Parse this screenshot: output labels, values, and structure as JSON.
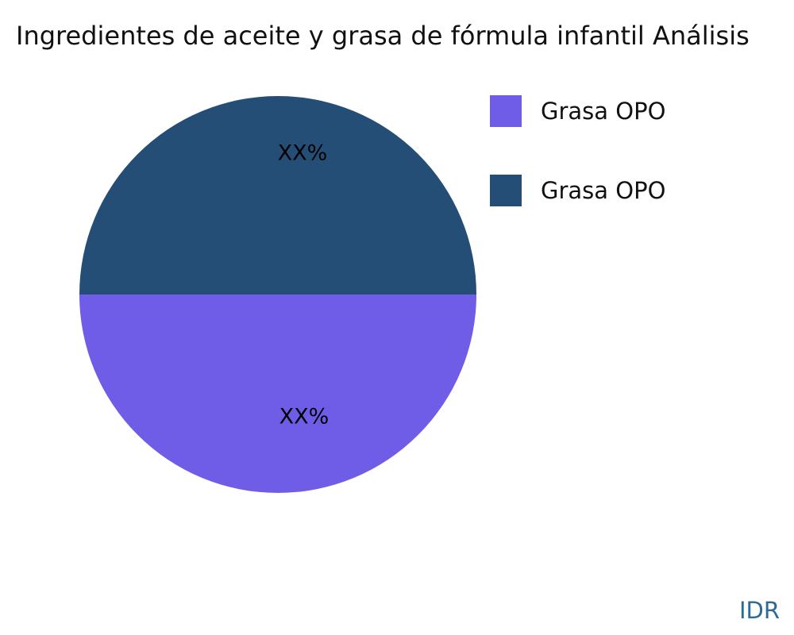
{
  "title": "Ingredientes de aceite y grasa de fórmula infantil Análisis",
  "watermark": "IDR",
  "legend": {
    "items": [
      {
        "label": "Grasa OPO",
        "color": "#6f5de8"
      },
      {
        "label": "Grasa OPO",
        "color": "#254e77"
      }
    ]
  },
  "chart_data": {
    "type": "pie",
    "title": "Ingredientes de aceite y grasa de fórmula infantil Análisis",
    "labels": [
      "Grasa OPO",
      "Grasa OPO"
    ],
    "values": [
      50,
      50
    ],
    "value_labels": [
      "XX%",
      "XX%"
    ],
    "colors": [
      "#6f5de8",
      "#254e77"
    ],
    "slice_positions": [
      "bottom",
      "top"
    ],
    "legend_position": "right",
    "start_angle_deg": 180,
    "watermark": "IDR"
  }
}
